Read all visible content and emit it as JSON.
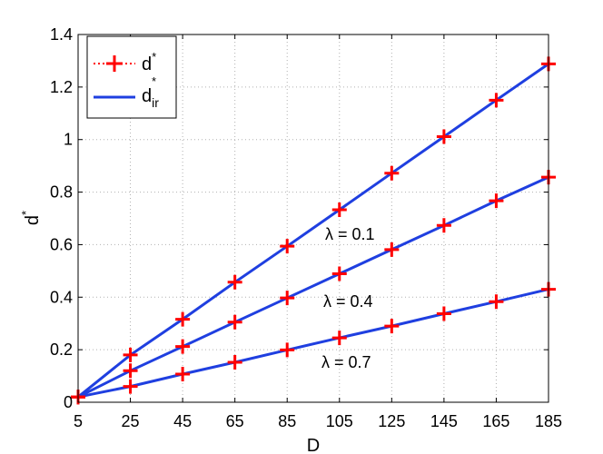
{
  "chart_data": {
    "type": "line",
    "xlabel": "D",
    "ylabel": "d",
    "ylabel_sup": "*",
    "xlim": [
      5,
      185
    ],
    "ylim": [
      0,
      1.4
    ],
    "xticks": [
      "5",
      "25",
      "45",
      "65",
      "85",
      "105",
      "125",
      "145",
      "165",
      "185"
    ],
    "yticks": [
      "0",
      "0.2",
      "0.4",
      "0.6",
      "0.8",
      "1",
      "1.2",
      "1.4"
    ],
    "grid": true,
    "legend_position": "top-left",
    "legend": [
      {
        "label": "d",
        "sup": "*",
        "sub": "",
        "marker": "plus",
        "line": "dotted",
        "color": "#ff0000"
      },
      {
        "label": "d",
        "sup": "*",
        "sub": "ir",
        "marker": "none",
        "line": "solid",
        "color": "#1f3fe0"
      }
    ],
    "x": [
      5,
      25,
      45,
      65,
      85,
      105,
      125,
      145,
      165,
      185
    ],
    "series": [
      {
        "lambda": "λ = 0.1",
        "values": [
          0.02,
          0.18,
          0.316,
          0.457,
          0.594,
          0.733,
          0.872,
          1.011,
          1.15,
          1.288
        ]
      },
      {
        "lambda": "λ = 0.4",
        "values": [
          0.02,
          0.12,
          0.212,
          0.305,
          0.397,
          0.489,
          0.581,
          0.673,
          0.767,
          0.857
        ]
      },
      {
        "lambda": "λ = 0.7",
        "values": [
          0.02,
          0.06,
          0.107,
          0.152,
          0.199,
          0.245,
          0.29,
          0.337,
          0.383,
          0.43
        ]
      }
    ],
    "annotations": [
      "λ = 0.1",
      "λ = 0.4",
      "λ = 0.7"
    ],
    "colors": {
      "line": "#1f3fe0",
      "marker": "#ff0000",
      "grid": "#b0b0b0"
    }
  }
}
